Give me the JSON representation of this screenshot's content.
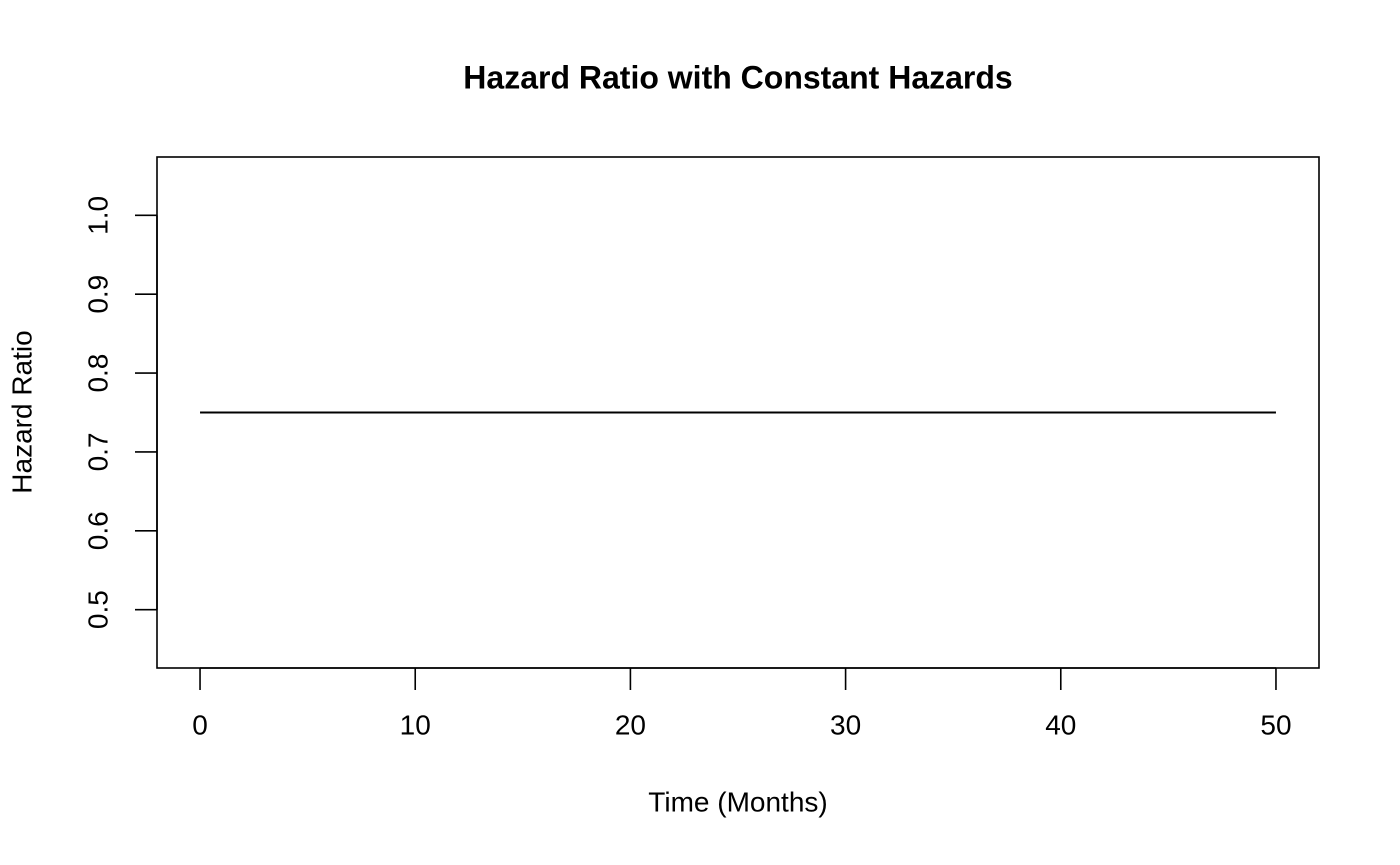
{
  "chart_data": {
    "type": "line",
    "title": "Hazard Ratio with Constant Hazards",
    "x_label": "Time (Months)",
    "y_label": "Hazard Ratio",
    "x": [
      0,
      50
    ],
    "values": [
      0.75,
      0.75
    ],
    "color": "#000000",
    "xlim": [
      -2,
      52
    ],
    "ylim": [
      0.426,
      1.074
    ],
    "xticks": [
      0,
      10,
      20,
      30,
      40,
      50
    ],
    "yticks": [
      0.5,
      0.6,
      0.7,
      0.8,
      0.9,
      {
        "value": 1.0,
        "label": "1.0"
      }
    ],
    "grid": false
  }
}
